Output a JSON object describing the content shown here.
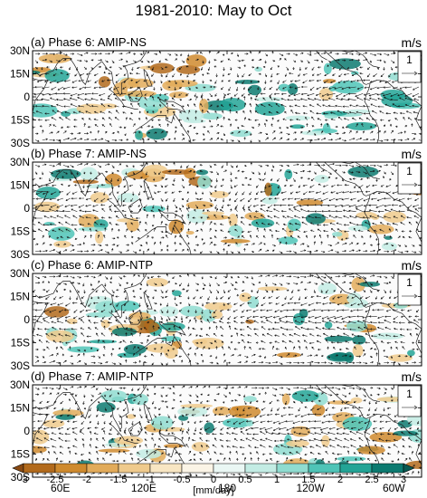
{
  "title": "1981-2010: May to Oct",
  "unit_label": "m/s",
  "reference_vector_value": "1",
  "lat_ticks": [
    "30N",
    "15N",
    "0",
    "15S",
    "30S"
  ],
  "lon_ticks": [
    "60E",
    "120E",
    "180",
    "120W",
    "60W"
  ],
  "lon_tick_values_deg_east": [
    60,
    120,
    180,
    240,
    300
  ],
  "lon_range_deg_east": [
    40,
    320
  ],
  "lat_range": [
    -30,
    30
  ],
  "panels": [
    {
      "label": "(a) Phase 6: AMIP-NS",
      "seed": 11
    },
    {
      "label": "(b) Phase 7: AMIP-NS",
      "seed": 23
    },
    {
      "label": "(c) Phase 6: AMIP-NTP",
      "seed": 37
    },
    {
      "label": "(d) Phase 7: AMIP-NTP",
      "seed": 53
    }
  ],
  "colorbar": {
    "ticks": [
      "-3",
      "-2.5",
      "-2",
      "-1.5",
      "-1",
      "-0.5",
      "0",
      "0.5",
      "1",
      "1.5",
      "2",
      "2.5",
      "3"
    ],
    "label": "[mm/day]",
    "colors": [
      "#8a4a12",
      "#b26a1c",
      "#cf8a2e",
      "#e2ab5a",
      "#efca8c",
      "#f8e6c3",
      "#fbf4e6",
      "#eaf7f4",
      "#c3ece4",
      "#8fdcd0",
      "#4fc4b7",
      "#23a496",
      "#0c7a70",
      "#0a5a52"
    ]
  }
}
